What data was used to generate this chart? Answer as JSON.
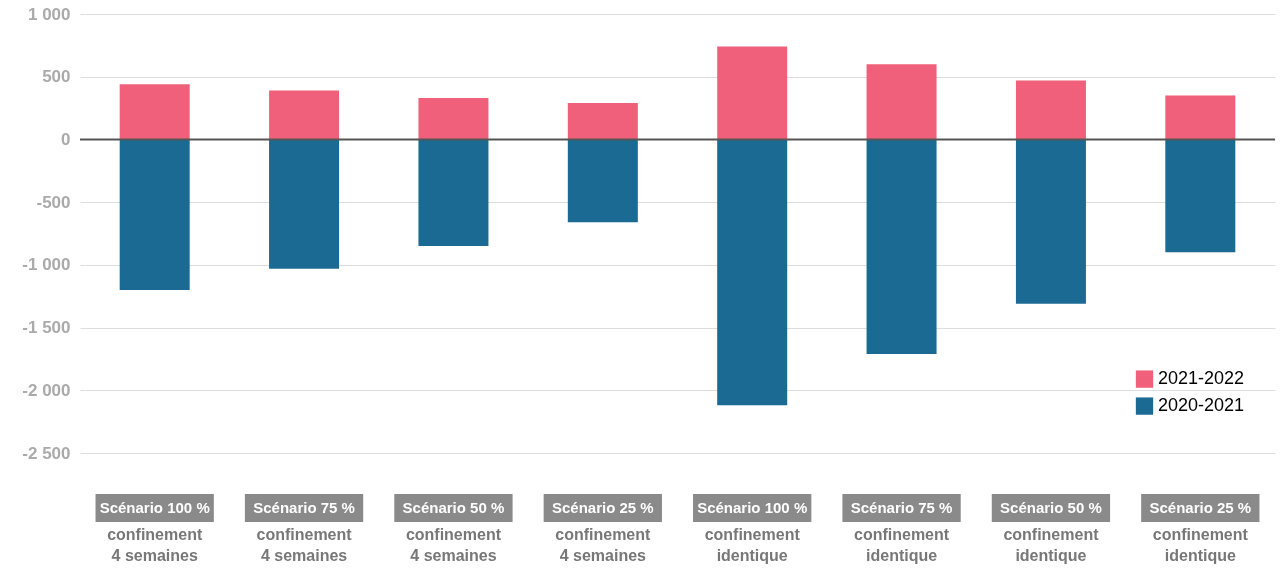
{
  "chart_data": {
    "type": "bar",
    "stacked": true,
    "categories": [
      "Scénario 100 %\nconfinement\n4 semaines",
      "Scénario 75 %\nconfinement\n4 semaines",
      "Scénario 50 %\nconfinement\n4 semaines",
      "Scénario 25 %\nconfinement\n4 semaines",
      "Scénario 100 %\nconfinement\nidentique",
      "Scénario 75 %\nconfinement\nidentique",
      "Scénario 50 %\nconfinement\nidentique",
      "Scénario 25 %\nconfinement\nidentique"
    ],
    "series": [
      {
        "name": "2021-2022",
        "color": "#f0607a",
        "values": [
          440,
          390,
          330,
          290,
          740,
          600,
          470,
          350
        ]
      },
      {
        "name": "2020-2021",
        "color": "#1b6a94",
        "values": [
          -1200,
          -1030,
          -850,
          -660,
          -2120,
          -1710,
          -1310,
          -900
        ]
      }
    ],
    "ylim": [
      -3050,
      1000
    ],
    "yticks": [
      {
        "value": -2500,
        "label": "-2 500"
      },
      {
        "value": -2000,
        "label": "-2 000"
      },
      {
        "value": -1500,
        "label": "-1 500"
      },
      {
        "value": -1000,
        "label": "-1 000"
      },
      -500,
      0,
      500,
      {
        "value": 1000,
        "label": "1 000"
      }
    ],
    "grid": "y",
    "legend": "right",
    "ref_lines": [
      {
        "axis": "y",
        "value": 0,
        "color": "#555555"
      }
    ]
  }
}
